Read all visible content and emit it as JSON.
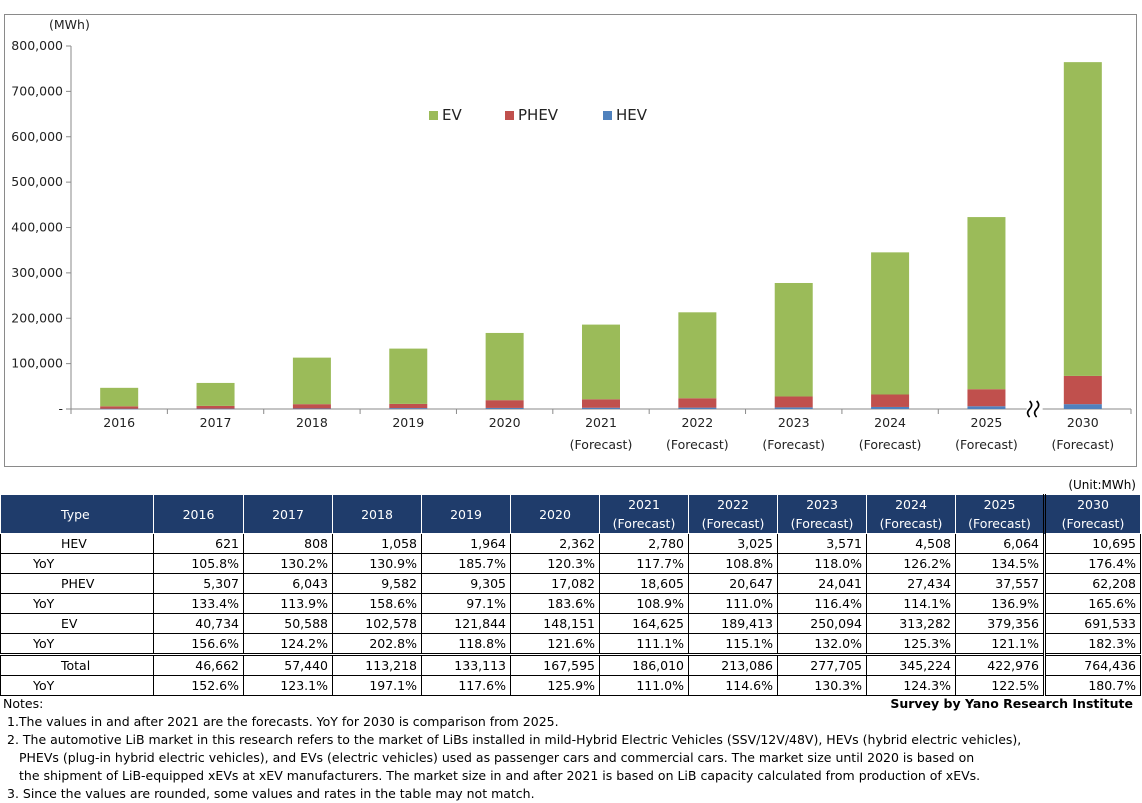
{
  "chart_data": {
    "type": "stacked-bar",
    "ylabel": "(MWh)",
    "ylim": [
      0,
      800000
    ],
    "yticks": [
      "-",
      "100,000",
      "200,000",
      "300,000",
      "400,000",
      "500,000",
      "600,000",
      "700,000",
      "800,000"
    ],
    "categories": [
      [
        "2016"
      ],
      [
        "2017"
      ],
      [
        "2018"
      ],
      [
        "2019"
      ],
      [
        "2020"
      ],
      [
        "2021",
        "(Forecast)"
      ],
      [
        "2022",
        "(Forecast)"
      ],
      [
        "2023",
        "(Forecast)"
      ],
      [
        "2024",
        "(Forecast)"
      ],
      [
        "2025",
        "(Forecast)"
      ],
      [
        "2030",
        "(Forecast)"
      ]
    ],
    "series": [
      {
        "name": "HEV",
        "color": "#4f81bd",
        "values": [
          621,
          808,
          1058,
          1964,
          2362,
          2780,
          3025,
          3571,
          4508,
          6064,
          10695
        ]
      },
      {
        "name": "PHEV",
        "color": "#c0504d",
        "values": [
          5307,
          6043,
          9582,
          9305,
          17082,
          18605,
          20647,
          24041,
          27434,
          37557,
          62208
        ]
      },
      {
        "name": "EV",
        "color": "#9bbb59",
        "values": [
          40734,
          50588,
          102578,
          121844,
          148151,
          164625,
          189413,
          250094,
          313282,
          379356,
          691533
        ]
      }
    ],
    "legend": [
      "EV",
      "PHEV",
      "HEV"
    ],
    "axis_break_between": [
      "2025",
      "2030"
    ]
  },
  "table": {
    "unit": "(Unit:MWh)",
    "type_header": "Type",
    "year_headers": [
      [
        "2016"
      ],
      [
        "2017"
      ],
      [
        "2018"
      ],
      [
        "2019"
      ],
      [
        "2020"
      ],
      [
        "2021",
        "(Forecast)"
      ],
      [
        "2022",
        "(Forecast)"
      ],
      [
        "2023",
        "(Forecast)"
      ],
      [
        "2024",
        "(Forecast)"
      ],
      [
        "2025",
        "(Forecast)"
      ],
      [
        "2030",
        "(Forecast)"
      ]
    ],
    "rows": [
      {
        "label": "HEV",
        "kind": "main",
        "values": [
          "621",
          "808",
          "1,058",
          "1,964",
          "2,362",
          "2,780",
          "3,025",
          "3,571",
          "4,508",
          "6,064",
          "10,695"
        ]
      },
      {
        "label": "YoY",
        "kind": "yoy",
        "values": [
          "105.8%",
          "130.2%",
          "130.9%",
          "185.7%",
          "120.3%",
          "117.7%",
          "108.8%",
          "118.0%",
          "126.2%",
          "134.5%",
          "176.4%"
        ]
      },
      {
        "label": "PHEV",
        "kind": "main",
        "values": [
          "5,307",
          "6,043",
          "9,582",
          "9,305",
          "17,082",
          "18,605",
          "20,647",
          "24,041",
          "27,434",
          "37,557",
          "62,208"
        ]
      },
      {
        "label": "YoY",
        "kind": "yoy",
        "values": [
          "133.4%",
          "113.9%",
          "158.6%",
          "97.1%",
          "183.6%",
          "108.9%",
          "111.0%",
          "116.4%",
          "114.1%",
          "136.9%",
          "165.6%"
        ]
      },
      {
        "label": "EV",
        "kind": "main",
        "values": [
          "40,734",
          "50,588",
          "102,578",
          "121,844",
          "148,151",
          "164,625",
          "189,413",
          "250,094",
          "313,282",
          "379,356",
          "691,533"
        ]
      },
      {
        "label": "YoY",
        "kind": "yoy",
        "values": [
          "156.6%",
          "124.2%",
          "202.8%",
          "118.8%",
          "121.6%",
          "111.1%",
          "115.1%",
          "132.0%",
          "125.3%",
          "121.1%",
          "182.3%"
        ]
      },
      {
        "label": "Total",
        "kind": "total",
        "values": [
          "46,662",
          "57,440",
          "113,218",
          "133,113",
          "167,595",
          "186,010",
          "213,086",
          "277,705",
          "345,224",
          "422,976",
          "764,436"
        ]
      },
      {
        "label": "YoY",
        "kind": "yoy",
        "values": [
          "152.6%",
          "123.1%",
          "197.1%",
          "117.6%",
          "125.9%",
          "111.0%",
          "114.6%",
          "130.3%",
          "124.3%",
          "122.5%",
          "180.7%"
        ]
      }
    ]
  },
  "notes": {
    "title": "Notes:",
    "source": "Survey by Yano Research Institute",
    "lines": [
      {
        "kind": "note",
        "text": "1.The values in and after 2021 are the forecasts. YoY for 2030 is comparison from 2025."
      },
      {
        "kind": "note",
        "text": "2. The automotive LiB market in this research refers to the market of LiBs installed in mild-Hybrid Electric Vehicles (SSV/12V/48V), HEVs (hybrid electric vehicles),"
      },
      {
        "kind": "cont",
        "text": "PHEVs (plug-in hybrid electric vehicles), and EVs (electric vehicles) used as passenger cars and commercial cars. The market size until 2020 is based on"
      },
      {
        "kind": "cont",
        "text": "the shipment of LiB-equipped xEVs at xEV manufacturers. The market size in and after 2021 is based on LiB capacity calculated from production of xEVs."
      },
      {
        "kind": "note",
        "text": "3. Since the values are rounded, some values and rates in the table may not match."
      }
    ]
  }
}
